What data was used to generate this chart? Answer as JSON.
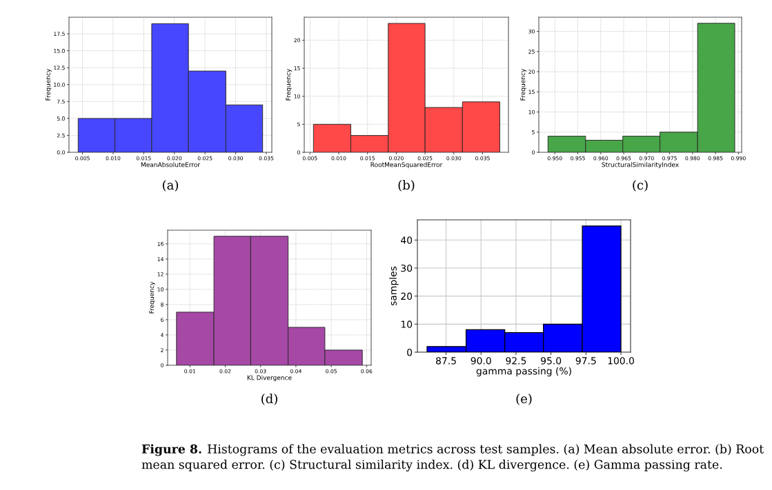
{
  "chart_data": [
    {
      "type": "histogram",
      "title": "(a)",
      "xlabel": "MeanAbsoluteError",
      "ylabel": "Frequency",
      "color": "#4747ff",
      "bins": [
        0.0043,
        0.0103,
        0.0163,
        0.0223,
        0.0284,
        0.0344
      ],
      "values": [
        5,
        5,
        19,
        12,
        7
      ],
      "xlim": [
        0.0028,
        0.0359
      ],
      "xticks": [
        0.005,
        {
          "value": 0.01,
          "label": "0.010"
        },
        0.015,
        {
          "value": 0.02,
          "label": "0.020"
        },
        0.025,
        {
          "value": 0.03,
          "label": "0.030"
        },
        0.035
      ],
      "ylim": [
        0,
        19.95
      ],
      "yticks": [
        {
          "value": 0,
          "label": "0.0"
        },
        2.5,
        {
          "value": 5,
          "label": "5.0"
        },
        7.5,
        {
          "value": 10,
          "label": "10.0"
        },
        12.5,
        {
          "value": 15,
          "label": "15.0"
        },
        17.5
      ],
      "grid": true,
      "annotations": [
        "Figure 8.",
        "Histograms of the evaluation metrics across test samples. (a) Mean absolute error. (b) Root mean squared error. (c) Structural similarity index. (d) KL divergence. (e) Gamma passing rate."
      ]
    },
    {
      "type": "histogram",
      "title": "(b)",
      "xlabel": "RootMeanSquaredError",
      "ylabel": "Frequency",
      "color": "#ff4848",
      "bins": [
        0.0056,
        0.0121,
        0.0186,
        0.025,
        0.0315,
        0.038
      ],
      "values": [
        5,
        3,
        23,
        8,
        9
      ],
      "xlim": [
        0.004,
        0.0395
      ],
      "xticks": [
        0.005,
        {
          "value": 0.01,
          "label": "0.010"
        },
        0.015,
        {
          "value": 0.02,
          "label": "0.020"
        },
        0.025,
        {
          "value": 0.03,
          "label": "0.030"
        },
        0.035
      ],
      "ylim": [
        0,
        24.1
      ],
      "yticks": [
        0,
        5,
        10,
        15,
        20
      ],
      "grid": true
    },
    {
      "type": "histogram",
      "title": "(c)",
      "xlabel": "StructuralSimilarityIndex",
      "ylabel": "Frequency",
      "color": "#48a648",
      "bins": [
        0.9485,
        0.9567,
        0.9648,
        0.9729,
        0.9811,
        0.9892
      ],
      "values": [
        4,
        3,
        4,
        5,
        32
      ],
      "xlim": [
        0.9465,
        0.9907
      ],
      "xticks": [
        {
          "value": 0.95,
          "label": "0.950"
        },
        0.955,
        {
          "value": 0.96,
          "label": "0.960"
        },
        0.965,
        {
          "value": 0.97,
          "label": "0.970"
        },
        0.975,
        {
          "value": 0.98,
          "label": "0.980"
        },
        0.985,
        {
          "value": 0.99,
          "label": "0.990"
        }
      ],
      "ylim": [
        0,
        33.5
      ],
      "yticks": [
        0,
        5,
        10,
        15,
        20,
        25,
        30
      ],
      "grid": true
    },
    {
      "type": "histogram",
      "title": "(d)",
      "xlabel": "KL Divergence",
      "ylabel": "Frequency",
      "color": "#a648a6",
      "bins": [
        0.0062,
        0.0168,
        0.0272,
        0.0378,
        0.0482,
        0.0588
      ],
      "values": [
        7,
        17,
        17,
        5,
        2
      ],
      "xlim": [
        0.0037,
        0.0613
      ],
      "xticks": [
        0.01,
        0.02,
        0.03,
        0.04,
        0.05,
        0.06
      ],
      "ylim": [
        0,
        17.8
      ],
      "yticks": [
        0,
        2,
        4,
        6,
        8,
        10,
        12,
        14,
        16
      ],
      "grid": true
    },
    {
      "type": "histogram",
      "title": "(e)",
      "xlabel": "gamma passing (%)",
      "ylabel": "samples",
      "color": "#0000ff",
      "bins": [
        86.14,
        88.93,
        91.7,
        94.46,
        97.24,
        100
      ],
      "values": [
        2,
        8,
        7,
        10,
        45
      ],
      "xlim": [
        85.45,
        100.69
      ],
      "xticks": [
        87.5,
        {
          "value": 90,
          "label": "90.0"
        },
        92.5,
        {
          "value": 95,
          "label": "95.0"
        },
        97.5,
        {
          "value": 100,
          "label": "100.0"
        }
      ],
      "ylim": [
        0,
        47.2
      ],
      "yticks": [
        0,
        10,
        20,
        30,
        40
      ],
      "grid": true
    }
  ]
}
